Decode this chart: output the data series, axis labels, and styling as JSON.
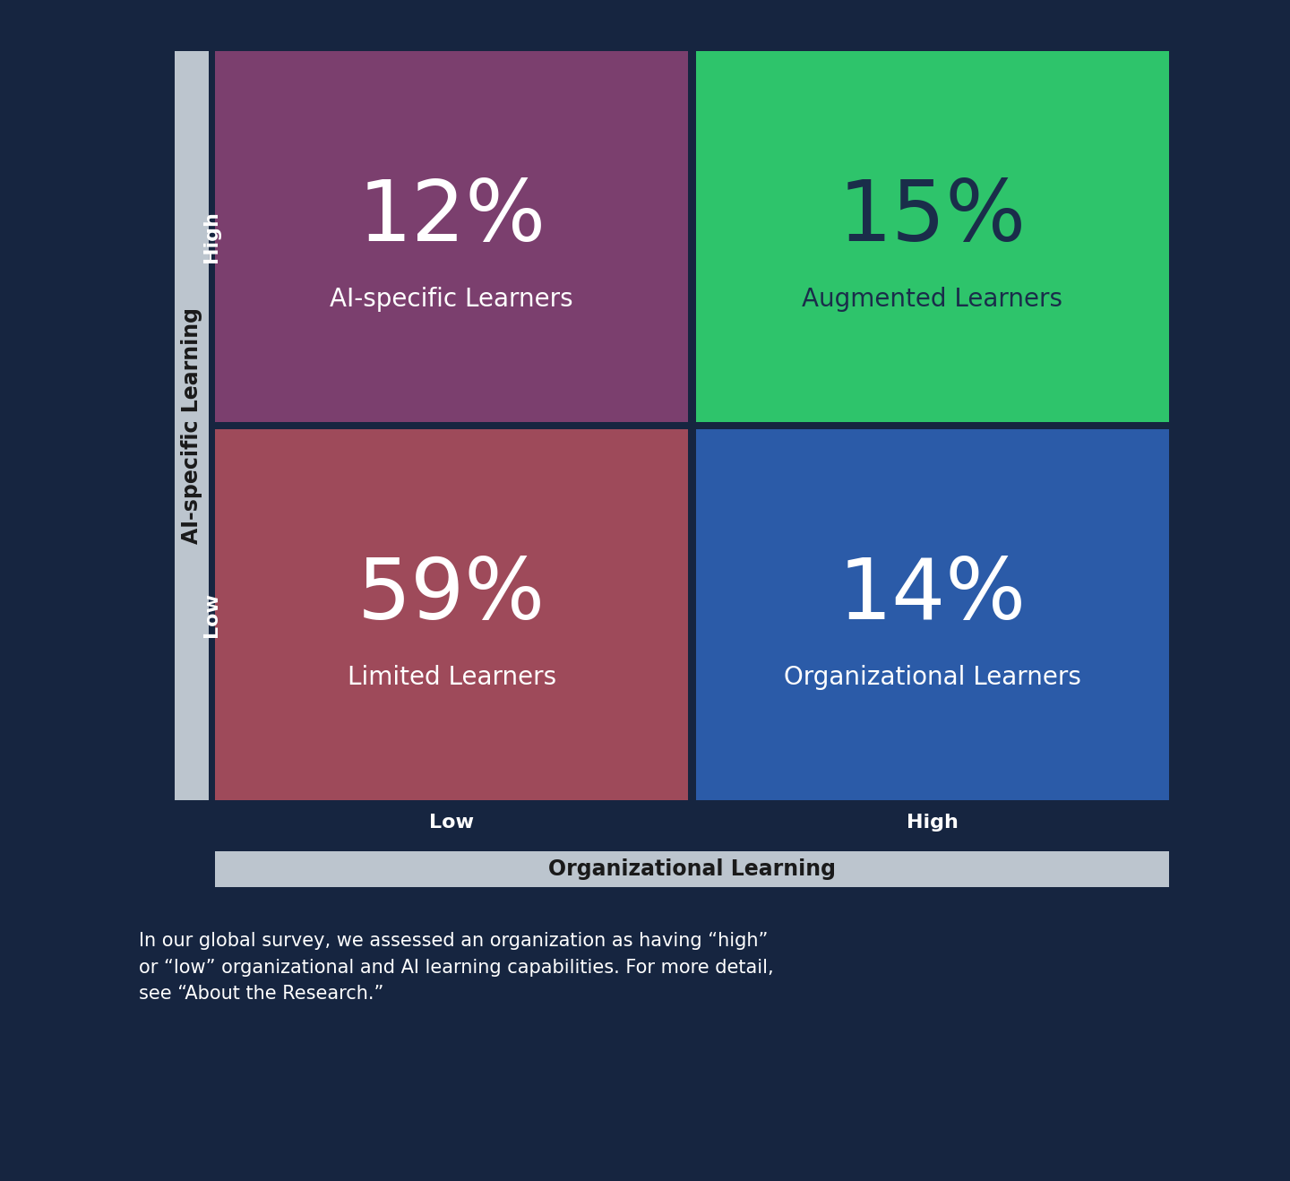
{
  "bg_color": "#162540",
  "quadrants": [
    {
      "row": 0,
      "col": 0,
      "color": "#7B3F6E",
      "pct": "12",
      "label": "AI-specific Learners",
      "text_color": "#FFFFFF",
      "label_color": "#FFFFFF"
    },
    {
      "row": 0,
      "col": 1,
      "color": "#2EC46B",
      "pct": "15",
      "label": "Augmented Learners",
      "text_color": "#1a2d4a",
      "label_color": "#1a2d4a"
    },
    {
      "row": 1,
      "col": 0,
      "color": "#9E4A5A",
      "pct": "59",
      "label": "Limited Learners",
      "text_color": "#FFFFFF",
      "label_color": "#FFFFFF"
    },
    {
      "row": 1,
      "col": 1,
      "color": "#2B5BA8",
      "pct": "14",
      "label": "Organizational Learners",
      "text_color": "#FFFFFF",
      "label_color": "#FFFFFF"
    }
  ],
  "y_axis_label": "AI-specific Learning",
  "x_axis_label": "Organizational Learning",
  "y_high_label": "High",
  "y_low_label": "Low",
  "x_low_label": "Low",
  "x_high_label": "High",
  "axis_bar_color": "#BCC5CE",
  "footnote": "In our global survey, we assessed an organization as having “high”\nor “low” organizational and AI learning capabilities. For more detail,\nsee “About the Research.”",
  "footnote_color": "#FFFFFF",
  "pct_fontsize": 68,
  "label_fontsize": 20,
  "axis_title_fontsize": 17,
  "tick_fontsize": 16,
  "footnote_fontsize": 15
}
